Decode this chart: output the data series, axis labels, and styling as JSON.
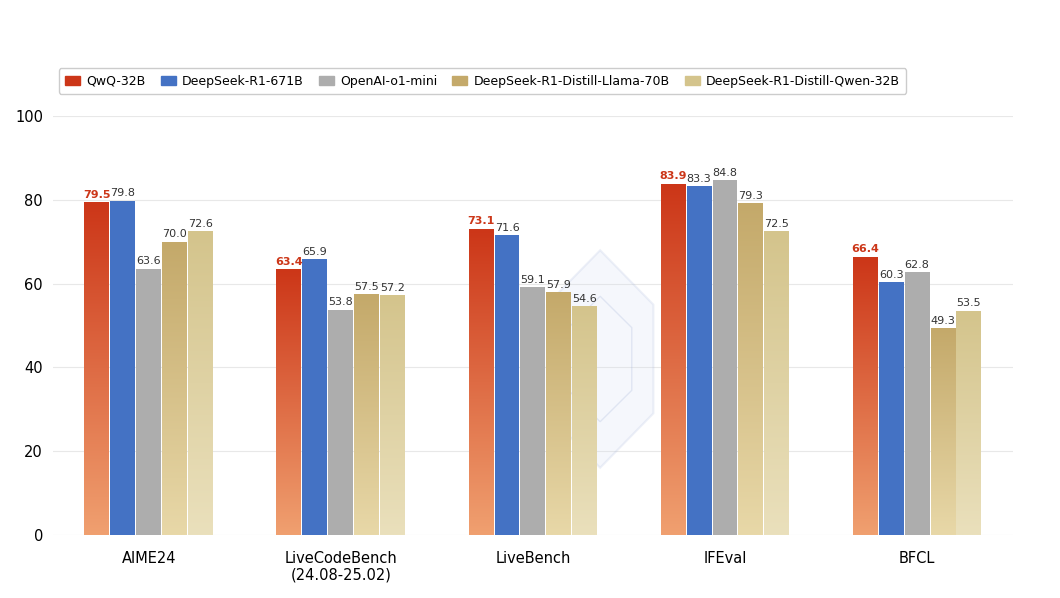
{
  "benchmarks": [
    "AIME24",
    "LiveCodeBench",
    "LiveBench",
    "IFEval",
    "BFCL"
  ],
  "benchmark_sublabels": [
    "",
    "(24.08-25.02)",
    "",
    "",
    ""
  ],
  "models": [
    "QwQ-32B",
    "DeepSeek-R1-671B",
    "OpenAI-o1-mini",
    "DeepSeek-R1-Distill-Llama-70B",
    "DeepSeek-R1-Distill-Qwen-32B"
  ],
  "values": [
    [
      79.5,
      79.8,
      63.6,
      70.0,
      72.6
    ],
    [
      63.4,
      65.9,
      53.8,
      57.5,
      57.2
    ],
    [
      73.1,
      71.6,
      59.1,
      57.9,
      54.6
    ],
    [
      83.9,
      83.3,
      84.8,
      79.3,
      72.5
    ],
    [
      66.4,
      60.3,
      62.8,
      49.3,
      53.5
    ]
  ],
  "use_gradient": [
    true,
    false,
    false,
    true,
    true
  ],
  "colors_top": [
    "#CC3618",
    "#4472C4",
    "#ADADAD",
    "#C4A96A",
    "#D4C48C"
  ],
  "colors_bottom": [
    "#F0A070",
    "#4472C4",
    "#ADADAD",
    "#E8D8A8",
    "#EAE0BC"
  ],
  "legend_colors": [
    "#CC3618",
    "#4472C4",
    "#ADADAD",
    "#C4A96A",
    "#D4C48C"
  ],
  "ylim": [
    0,
    100
  ],
  "yticks": [
    0,
    20,
    40,
    60,
    80,
    100
  ],
  "bar_width": 0.13,
  "background_color": "#FFFFFF",
  "grid_color": "#E8E8E8",
  "value_fontsize": 8.0,
  "axis_fontsize": 10.5,
  "legend_fontsize": 9.0,
  "qwq_label_color": "#CC3618",
  "other_label_color": "#333333"
}
